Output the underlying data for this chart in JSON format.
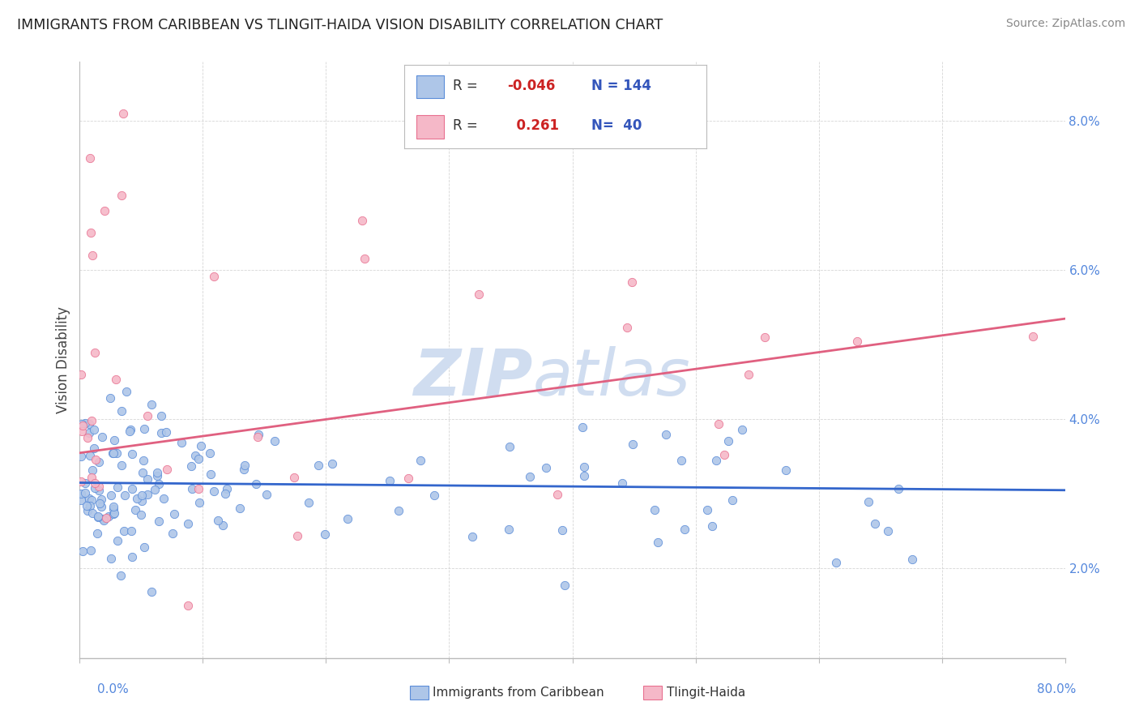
{
  "title": "IMMIGRANTS FROM CARIBBEAN VS TLINGIT-HAIDA VISION DISABILITY CORRELATION CHART",
  "source": "Source: ZipAtlas.com",
  "ylabel": "Vision Disability",
  "x_min": 0.0,
  "x_max": 80.0,
  "y_min": 0.8,
  "y_max": 8.8,
  "y_ticks": [
    2.0,
    4.0,
    6.0,
    8.0
  ],
  "x_ticks": [
    0.0,
    10.0,
    20.0,
    30.0,
    40.0,
    50.0,
    60.0,
    70.0,
    80.0
  ],
  "blue_fill_color": "#aec6e8",
  "blue_edge_color": "#5b8dd9",
  "pink_fill_color": "#f5b8c8",
  "pink_edge_color": "#e87090",
  "blue_line_color": "#3366cc",
  "pink_line_color": "#e06080",
  "tick_label_color": "#5588dd",
  "legend_r_color": "#cc2222",
  "legend_n_color": "#3355bb",
  "watermark_color": "#d0ddf0",
  "legend_r_blue": "-0.046",
  "legend_n_blue": "144",
  "legend_r_pink": "0.261",
  "legend_n_pink": "40",
  "blue_line_y0": 3.15,
  "blue_line_y1": 3.05,
  "pink_line_y0": 3.55,
  "pink_line_y1": 5.35
}
